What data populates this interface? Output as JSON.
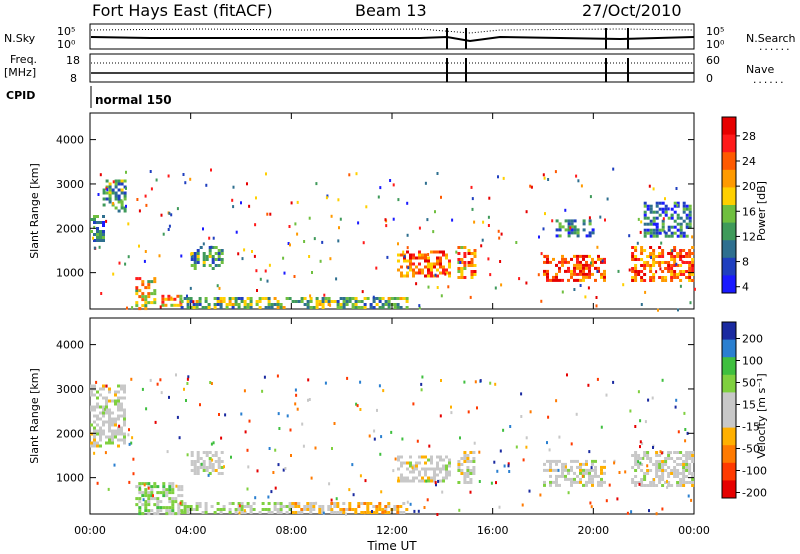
{
  "header": {
    "station": "Fort Hays East (fitACF)",
    "beam": "Beam 13",
    "date": "27/Oct/2010"
  },
  "noise_panel": {
    "left_label": "N.Sky",
    "right_label": "N.Search",
    "right_marker": "......",
    "left_ticks": [
      "10^5",
      "10^0"
    ],
    "right_ticks": [
      "10^5",
      "10^0"
    ]
  },
  "freq_panel": {
    "left_label_1": "Freq.",
    "left_label_2": "[MHz]",
    "right_label": "Nave",
    "right_marker": "......",
    "left_ticks": [
      "18",
      "8"
    ],
    "right_ticks": [
      "60",
      "0"
    ]
  },
  "cpid": {
    "label": "CPID",
    "value": "normal 150"
  },
  "colors": {
    "power": [
      "#1a1aff",
      "#1f3fbf",
      "#2e6f8f",
      "#3f9a5a",
      "#6fbf3f",
      "#ffd000",
      "#ff9a00",
      "#ff5a00",
      "#ff1a1a",
      "#e60000"
    ],
    "velocity": [
      "#e60000",
      "#ff3a00",
      "#ff7a00",
      "#ffb000",
      "#c8c8c8",
      "#c8c8c8",
      "#7fd03f",
      "#3fbf3f",
      "#2a7fd0",
      "#1a2aa0"
    ]
  },
  "chart_data": [
    {
      "type": "heatmap",
      "panel": "power",
      "ylabel": "Slant Range [km]",
      "colorbar_label": "Power [dB]",
      "colorbar_ticks": [
        "28",
        "24",
        "20",
        "16",
        "12",
        "8",
        "4"
      ],
      "colorbar_range": [
        0,
        30
      ],
      "ylim": [
        180,
        4600
      ],
      "yticks": [
        "4000",
        "3000",
        "2000",
        "1000"
      ],
      "xlim": [
        0,
        24
      ],
      "xticks": [
        "00:00",
        "04:00",
        "08:00",
        "12:00",
        "16:00",
        "20:00",
        "00:00"
      ],
      "regions": [
        {
          "t": [
            0.0,
            0.5
          ],
          "r": [
            1700,
            2300
          ],
          "v": 8
        },
        {
          "t": [
            0.5,
            1.4
          ],
          "r": [
            2400,
            3100
          ],
          "v": 10
        },
        {
          "t": [
            1.8,
            2.6
          ],
          "r": [
            200,
            900
          ],
          "v": 18
        },
        {
          "t": [
            2.6,
            3.6
          ],
          "r": [
            250,
            500
          ],
          "v": 20
        },
        {
          "t": [
            3.6,
            12.6
          ],
          "r": [
            200,
            450
          ],
          "v": 12
        },
        {
          "t": [
            4.0,
            5.2
          ],
          "r": [
            1100,
            1600
          ],
          "v": 10
        },
        {
          "t": [
            12.2,
            14.3
          ],
          "r": [
            900,
            1500
          ],
          "v": 22
        },
        {
          "t": [
            14.6,
            14.9
          ],
          "r": [
            900,
            1600
          ],
          "v": 20
        },
        {
          "t": [
            15.0,
            15.3
          ],
          "r": [
            900,
            1600
          ],
          "v": 22
        },
        {
          "t": [
            18.0,
            20.5
          ],
          "r": [
            800,
            1400
          ],
          "v": 24
        },
        {
          "t": [
            21.5,
            24.0
          ],
          "r": [
            800,
            1600
          ],
          "v": 22
        },
        {
          "t": [
            18.5,
            20.0
          ],
          "r": [
            1800,
            2200
          ],
          "v": 8
        },
        {
          "t": [
            22.0,
            23.8
          ],
          "r": [
            1800,
            2600
          ],
          "v": 6
        }
      ]
    },
    {
      "type": "heatmap",
      "panel": "velocity",
      "ylabel": "Slant Range [km]",
      "xlabel": "Time UT",
      "colorbar_label": "Velocity [m s⁻¹]",
      "colorbar_ticks": [
        "200",
        "100",
        "50",
        "15",
        "-15",
        "-50",
        "-100",
        "-200"
      ],
      "colorbar_range": [
        -250,
        250
      ],
      "ylim": [
        180,
        4600
      ],
      "yticks": [
        "4000",
        "3000",
        "2000",
        "1000"
      ],
      "xlim": [
        0,
        24
      ],
      "xticks": [
        "00:00",
        "04:00",
        "08:00",
        "12:00",
        "16:00",
        "20:00",
        "00:00"
      ],
      "regions": [
        {
          "t": [
            0.0,
            1.4
          ],
          "r": [
            1700,
            3100
          ],
          "v": 0
        },
        {
          "t": [
            1.8,
            3.6
          ],
          "r": [
            200,
            900
          ],
          "v": 60
        },
        {
          "t": [
            3.6,
            8.0
          ],
          "r": [
            200,
            450
          ],
          "v": 40
        },
        {
          "t": [
            8.0,
            12.6
          ],
          "r": [
            200,
            450
          ],
          "v": -60
        },
        {
          "t": [
            4.0,
            5.2
          ],
          "r": [
            1100,
            1600
          ],
          "v": 0
        },
        {
          "t": [
            12.2,
            14.3
          ],
          "r": [
            900,
            1500
          ],
          "v": 0
        },
        {
          "t": [
            14.6,
            15.3
          ],
          "r": [
            900,
            1600
          ],
          "v": 0
        },
        {
          "t": [
            18.0,
            20.5
          ],
          "r": [
            800,
            1400
          ],
          "v": 0
        },
        {
          "t": [
            21.5,
            24.0
          ],
          "r": [
            800,
            1600
          ],
          "v": 0
        }
      ]
    }
  ]
}
